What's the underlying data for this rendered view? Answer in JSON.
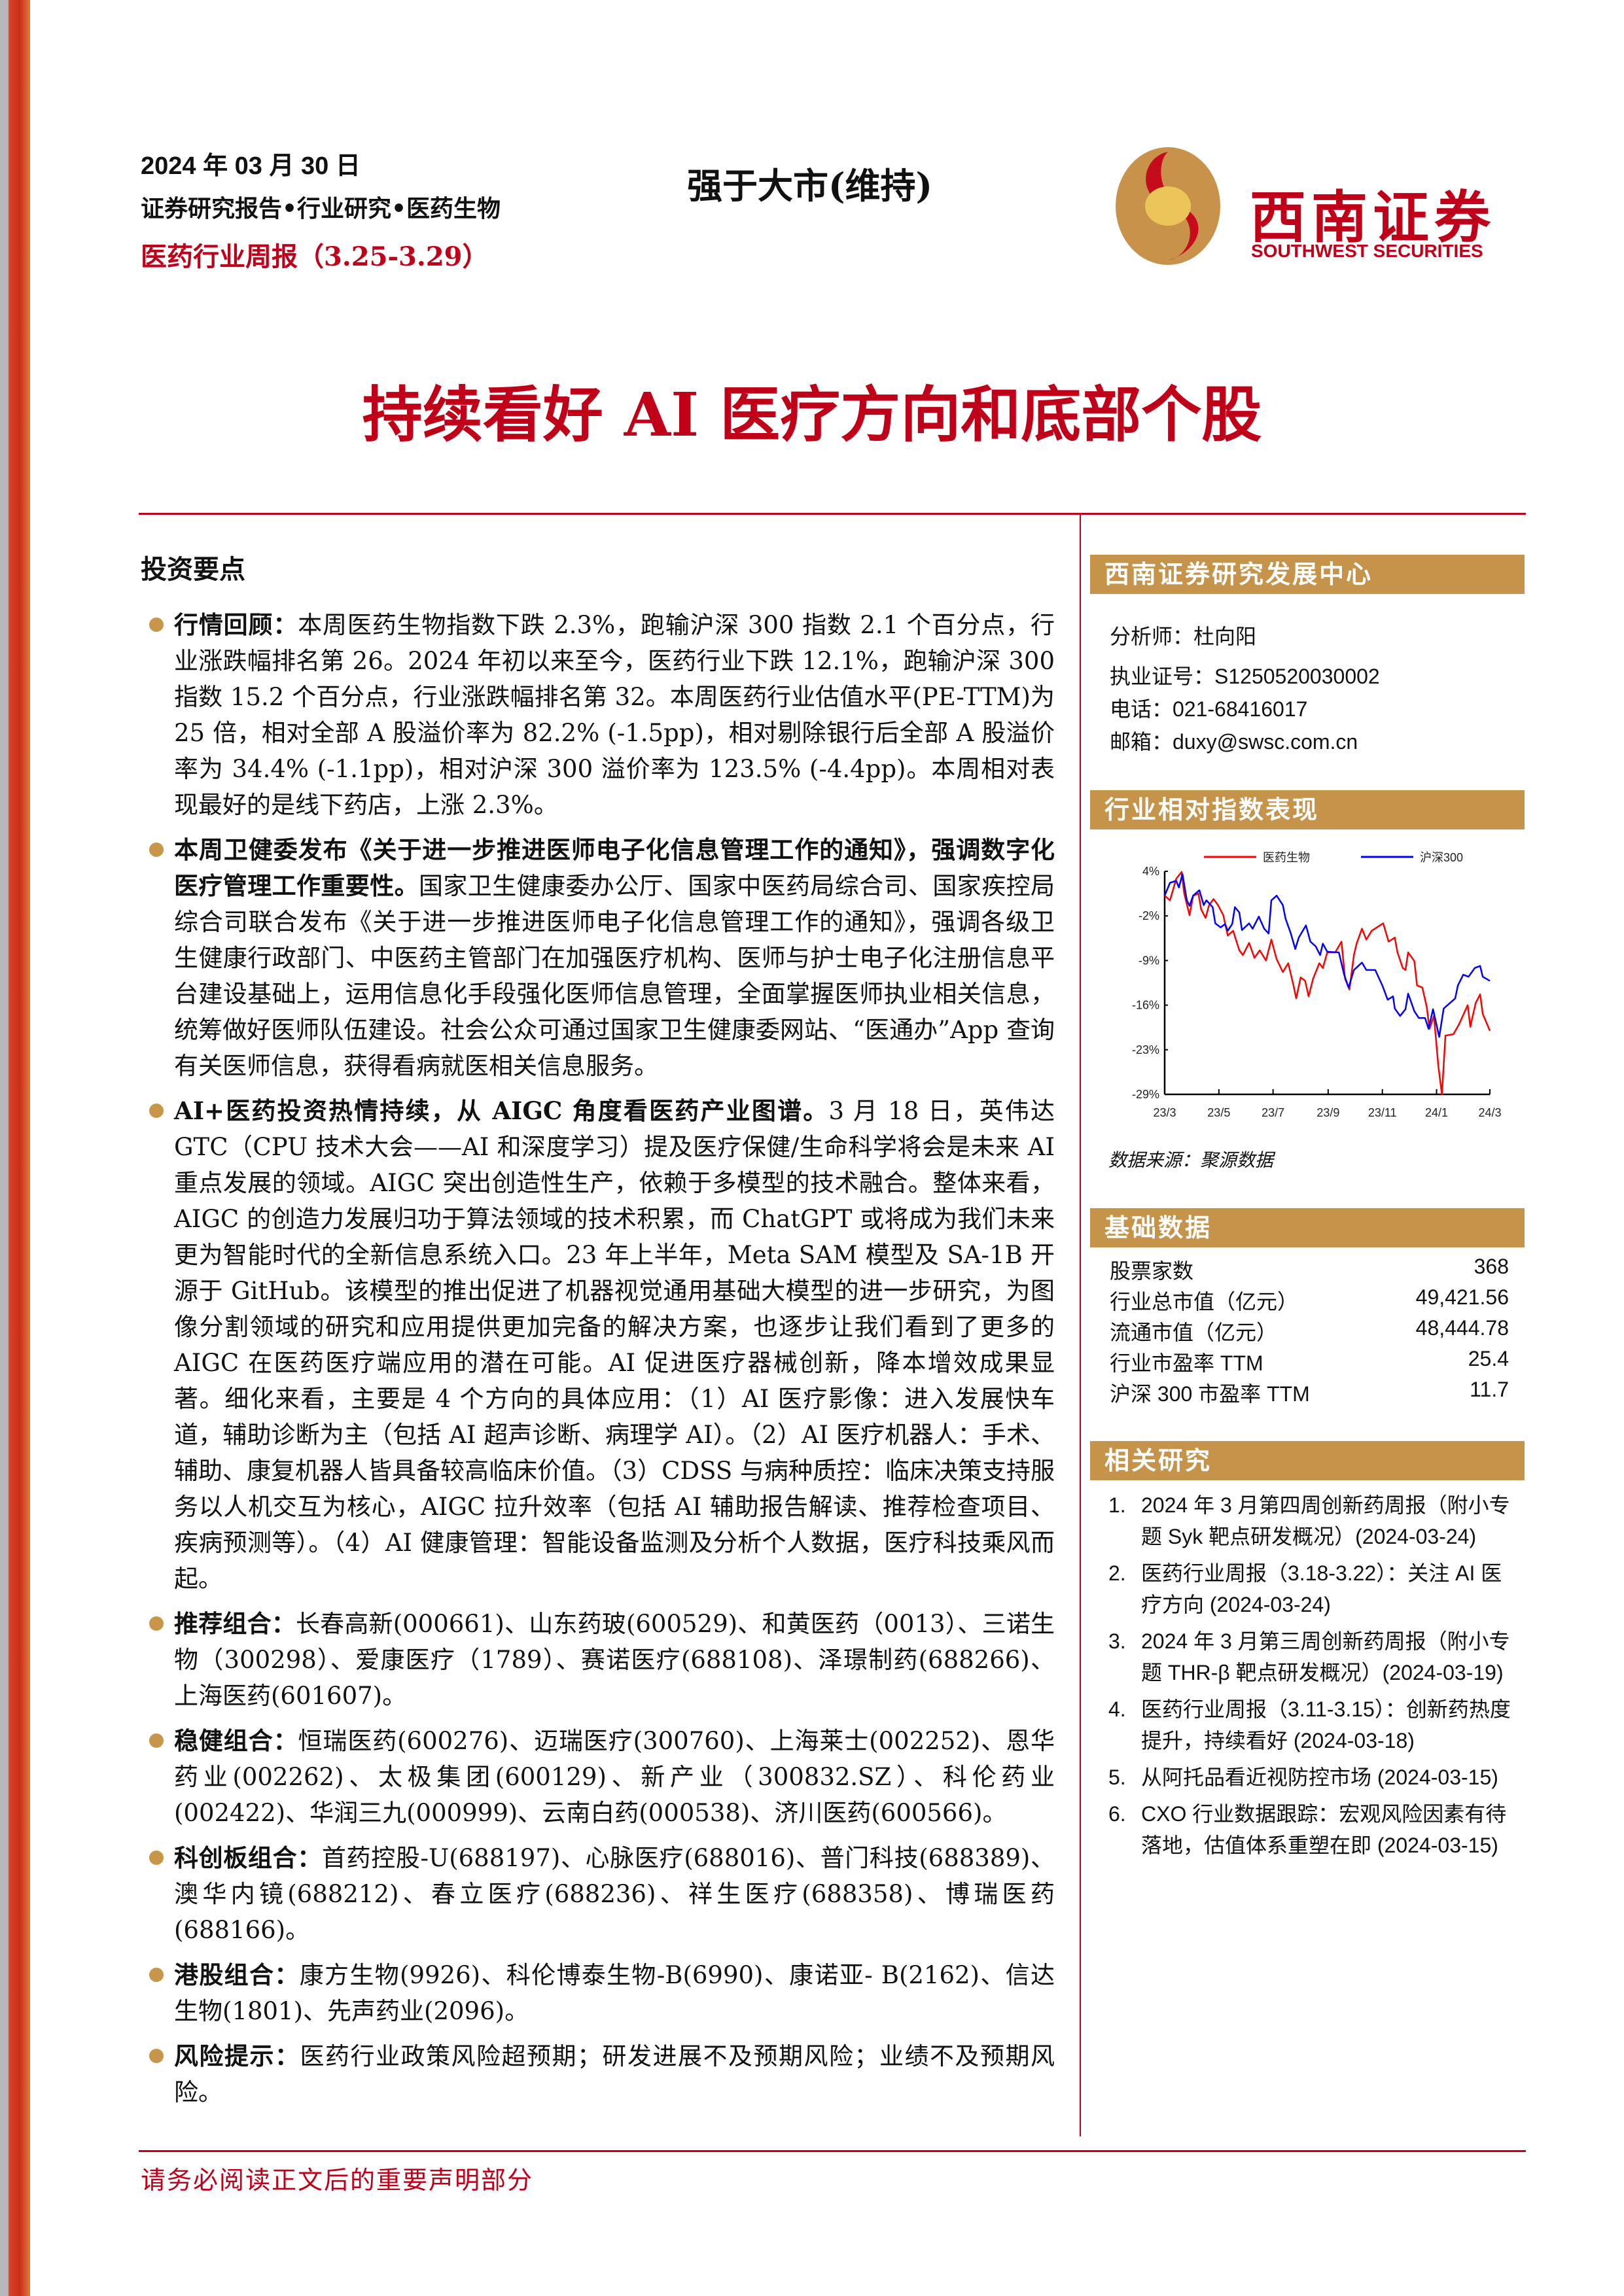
{
  "header": {
    "date": "2024 年 03 月 30 日",
    "report_type": "证券研究报告•行业研究•医药生物",
    "weekly": "医药行业周报（3.25-3.29）",
    "rating": "强于大市(维持)"
  },
  "logo": {
    "cn": "西南证券",
    "en": "SOUTHWEST SECURITIES"
  },
  "title": "持续看好 AI 医疗方向和底部个股",
  "main": {
    "heading": "投资要点",
    "points": [
      {
        "lead": "行情回顾：",
        "body": "本周医药生物指数下跌 2.3%，跑输沪深 300 指数 2.1 个百分点，行业涨跌幅排名第 26。2024 年初以来至今，医药行业下跌 12.1%，跑输沪深 300 指数 15.2 个百分点，行业涨跌幅排名第 32。本周医药行业估值水平(PE-TTM)为 25 倍，相对全部 A 股溢价率为 82.2% (-1.5pp)，相对剔除银行后全部 A 股溢价率为 34.4% (-1.1pp)，相对沪深 300 溢价率为 123.5% (-4.4pp)。本周相对表现最好的是线下药店，上涨 2.3%。"
      },
      {
        "lead": "本周卫健委发布《关于进一步推进医师电子化信息管理工作的通知》，强调数字化医疗管理工作重要性。",
        "body": "国家卫生健康委办公厅、国家中医药局综合司、国家疾控局综合司联合发布《关于进一步推进医师电子化信息管理工作的通知》，强调各级卫生健康行政部门、中医药主管部门在加强医疗机构、医师与护士电子化注册信息平台建设基础上，运用信息化手段强化医师信息管理，全面掌握医师执业相关信息，统筹做好医师队伍建设。社会公众可通过国家卫生健康委网站、“医通办”App 查询有关医师信息，获得看病就医相关信息服务。"
      },
      {
        "lead": "AI+医药投资热情持续，从 AIGC 角度看医药产业图谱。",
        "body": "3 月 18 日，英伟达 GTC（CPU 技术大会——AI 和深度学习）提及医疗保健/生命科学将会是未来 AI 重点发展的领域。AIGC 突出创造性生产，依赖于多模型的技术融合。整体来看，AIGC 的创造力发展归功于算法领域的技术积累，而 ChatGPT 或将成为我们未来更为智能时代的全新信息系统入口。23 年上半年，Meta SAM 模型及 SA-1B 开源于 GitHub。该模型的推出促进了机器视觉通用基础大模型的进一步研究，为图像分割领域的研究和应用提供更加完备的解决方案，也逐步让我们看到了更多的 AIGC 在医药医疗端应用的潜在可能。AI 促进医疗器械创新，降本增效成果显著。细化来看，主要是 4 个方向的具体应用：（1）AI 医疗影像：进入发展快车道，辅助诊断为主（包括 AI 超声诊断、病理学 AI）。（2）AI 医疗机器人：手术、辅助、康复机器人皆具备较高临床价值。（3）CDSS 与病种质控：临床决策支持服务以人机交互为核心，AIGC 拉升效率（包括 AI 辅助报告解读、推荐检查项目、疾病预测等）。（4）AI 健康管理：智能设备监测及分析个人数据，医疗科技乘风而起。"
      },
      {
        "lead": "推荐组合：",
        "body": "长春高新(000661)、山东药玻(600529)、和黄医药（0013）、三诺生物（300298）、爱康医疗（1789）、赛诺医疗(688108)、泽璟制药(688266)、上海医药(601607)。"
      },
      {
        "lead": "稳健组合：",
        "body": "恒瑞医药(600276)、迈瑞医疗(300760)、上海莱士(002252)、恩华药业(002262)、太极集团(600129)、新产业（300832.SZ）、科伦药业(002422)、华润三九(000999)、云南白药(000538)、济川医药(600566)。"
      },
      {
        "lead": "科创板组合：",
        "body": "首药控股-U(688197)、心脉医疗(688016)、普门科技(688389)、澳华内镜(688212)、春立医疗(688236)、祥生医疗(688358)、博瑞医药(688166)。"
      },
      {
        "lead": "港股组合：",
        "body": "康方生物(9926)、科伦博泰生物-B(6990)、康诺亚- B(2162)、信达生物(1801)、先声药业(2096)。"
      },
      {
        "lead": "风险提示：",
        "body": "医药行业政策风险超预期；研发进展不及预期风险；业绩不及预期风险。"
      }
    ]
  },
  "sidebar": {
    "center_title": "西南证券研究发展中心",
    "analyst": "分析师：杜向阳",
    "license": "执业证号：S1250520030002",
    "phone": "电话：021-68416017",
    "email": "邮箱：duxy@swsc.com.cn",
    "chart_title": "行业相对指数表现",
    "chart_source": "数据来源：聚源数据",
    "basic_title": "基础数据",
    "basic_rows": [
      {
        "label": "股票家数",
        "value": "368"
      },
      {
        "label": "行业总市值（亿元）",
        "value": "49,421.56"
      },
      {
        "label": "流通市值（亿元）",
        "value": "48,444.78"
      },
      {
        "label": "行业市盈率 TTM",
        "value": "25.4"
      },
      {
        "label": "沪深 300 市盈率 TTM",
        "value": "11.7"
      }
    ],
    "related_title": "相关研究",
    "related": [
      {
        "num": "1.",
        "text": "2024 年 3 月第四周创新药周报（附小专题 Syk 靶点研发概况）(2024-03-24)"
      },
      {
        "num": "2.",
        "text": "医药行业周报（3.18-3.22）：关注 AI 医疗方向 (2024-03-24)"
      },
      {
        "num": "3.",
        "text": "2024 年 3 月第三周创新药周报（附小专题 THR-β 靶点研发概况）(2024-03-19)"
      },
      {
        "num": "4.",
        "text": "医药行业周报（3.11-3.15）：创新药热度提升，持续看好 (2024-03-18)"
      },
      {
        "num": "5.",
        "text": "从阿托品看近视防控市场 (2024-03-15)"
      },
      {
        "num": "6.",
        "text": "CXO 行业数据跟踪：宏观风险因素有待落地，估值体系重塑在即 (2024-03-15)"
      }
    ]
  },
  "footer": "请务必阅读正文后的重要声明部分",
  "colors": {
    "brand_red": "#c00018",
    "section_gold": "#c6934a",
    "series_pharma": "#ff0000",
    "series_hs300": "#0000ff"
  },
  "chart_data": {
    "type": "line",
    "ylim": [
      -29,
      4
    ],
    "y_tick_labels": [
      "4%",
      "-2%",
      "-9%",
      "-16%",
      "-23%",
      "-29%"
    ],
    "x_tick_labels": [
      "23/3",
      "23/5",
      "23/7",
      "23/9",
      "23/11",
      "24/1",
      "24/3"
    ],
    "x_tick_dates": [
      "2023-03-01",
      "2023-05-01",
      "2023-07-01",
      "2023-09-01",
      "2023-11-01",
      "2024-01-01",
      "2024-03-01"
    ],
    "legend": "top",
    "series": [
      {
        "name": "医药生物",
        "color": "#ff0000",
        "points": [
          [
            "2023-03-01",
            0.4
          ],
          [
            "2023-03-07",
            -0.3
          ],
          [
            "2023-03-14",
            2.9
          ],
          [
            "2023-03-20",
            3.9
          ],
          [
            "2023-03-23",
            0.7
          ],
          [
            "2023-03-29",
            -2.5
          ],
          [
            "2023-04-02",
            0.4
          ],
          [
            "2023-04-08",
            0.7
          ],
          [
            "2023-04-11",
            -1.6
          ],
          [
            "2023-04-16",
            -2.9
          ],
          [
            "2023-04-20",
            -1.0
          ],
          [
            "2023-04-25",
            -0.1
          ],
          [
            "2023-04-30",
            -1.0
          ],
          [
            "2023-05-06",
            -2.5
          ],
          [
            "2023-05-11",
            -5.5
          ],
          [
            "2023-05-17",
            -4.8
          ],
          [
            "2023-05-24",
            -7.7
          ],
          [
            "2023-05-28",
            -8.4
          ],
          [
            "2023-06-04",
            -6.6
          ],
          [
            "2023-06-10",
            -8.8
          ],
          [
            "2023-06-16",
            -7.7
          ],
          [
            "2023-06-23",
            -9.2
          ],
          [
            "2023-06-29",
            -6.1
          ],
          [
            "2023-07-05",
            -9.0
          ],
          [
            "2023-07-12",
            -10.9
          ],
          [
            "2023-07-18",
            -9.6
          ],
          [
            "2023-07-24",
            -12.9
          ],
          [
            "2023-07-27",
            -14.8
          ],
          [
            "2023-08-01",
            -11.7
          ],
          [
            "2023-08-06",
            -12.2
          ],
          [
            "2023-08-10",
            -14.5
          ],
          [
            "2023-08-15",
            -11.9
          ],
          [
            "2023-08-22",
            -9.6
          ],
          [
            "2023-08-26",
            -10.3
          ],
          [
            "2023-08-31",
            -8.0
          ],
          [
            "2023-09-09",
            -8.0
          ],
          [
            "2023-09-16",
            -6.4
          ],
          [
            "2023-09-20",
            -11.9
          ],
          [
            "2023-09-25",
            -13.5
          ],
          [
            "2023-09-30",
            -8.4
          ],
          [
            "2023-10-03",
            -6.7
          ],
          [
            "2023-10-09",
            -4.5
          ],
          [
            "2023-10-14",
            -6.1
          ],
          [
            "2023-10-20",
            -4.8
          ],
          [
            "2023-10-27",
            -4.2
          ],
          [
            "2023-11-02",
            -3.7
          ],
          [
            "2023-11-08",
            -6.4
          ],
          [
            "2023-11-15",
            -5.8
          ],
          [
            "2023-11-18",
            -8.0
          ],
          [
            "2023-11-24",
            -10.3
          ],
          [
            "2023-11-27",
            -10.6
          ],
          [
            "2023-11-30",
            -8.0
          ],
          [
            "2023-12-07",
            -9.3
          ],
          [
            "2023-12-10",
            -12.9
          ],
          [
            "2023-12-16",
            -13.2
          ],
          [
            "2023-12-21",
            -16.1
          ],
          [
            "2023-12-24",
            -19.3
          ],
          [
            "2023-12-29",
            -17.4
          ],
          [
            "2024-01-03",
            -24.8
          ],
          [
            "2024-01-07",
            -29.0
          ],
          [
            "2024-01-11",
            -20.3
          ],
          [
            "2024-01-20",
            -20.1
          ],
          [
            "2024-01-26",
            -18.7
          ],
          [
            "2024-02-05",
            -15.8
          ],
          [
            "2024-02-08",
            -19.0
          ],
          [
            "2024-02-14",
            -15.5
          ],
          [
            "2024-02-19",
            -14.2
          ],
          [
            "2024-02-22",
            -17.1
          ],
          [
            "2024-03-01",
            -19.6
          ]
        ]
      },
      {
        "name": "沪深300",
        "color": "#0000ff",
        "points": [
          [
            "2023-03-01",
            0.4
          ],
          [
            "2023-03-07",
            2.3
          ],
          [
            "2023-03-14",
            2.6
          ],
          [
            "2023-03-17",
            1.6
          ],
          [
            "2023-03-21",
            3.6
          ],
          [
            "2023-03-26",
            -0.3
          ],
          [
            "2023-03-29",
            -1.1
          ],
          [
            "2023-04-02",
            0.4
          ],
          [
            "2023-04-09",
            1.2
          ],
          [
            "2023-04-14",
            -1.0
          ],
          [
            "2023-04-17",
            -0.3
          ],
          [
            "2023-04-24",
            -1.3
          ],
          [
            "2023-04-27",
            -3.7
          ],
          [
            "2023-05-03",
            -4.3
          ],
          [
            "2023-05-08",
            -3.8
          ],
          [
            "2023-05-11",
            -4.8
          ],
          [
            "2023-05-16",
            -3.8
          ],
          [
            "2023-05-19",
            -1.3
          ],
          [
            "2023-05-24",
            -2.1
          ],
          [
            "2023-05-27",
            -4.7
          ],
          [
            "2023-06-04",
            -3.7
          ],
          [
            "2023-06-08",
            -4.5
          ],
          [
            "2023-06-15",
            -2.7
          ],
          [
            "2023-06-21",
            -4.5
          ],
          [
            "2023-06-26",
            -5.2
          ],
          [
            "2023-06-29",
            -0.3
          ],
          [
            "2023-07-05",
            0.4
          ],
          [
            "2023-07-12",
            -1.0
          ],
          [
            "2023-07-15",
            -3.0
          ],
          [
            "2023-07-21",
            -5.2
          ],
          [
            "2023-07-26",
            -7.5
          ],
          [
            "2023-07-30",
            -5.8
          ],
          [
            "2023-08-07",
            -4.0
          ],
          [
            "2023-08-12",
            -6.4
          ],
          [
            "2023-08-18",
            -7.1
          ],
          [
            "2023-08-23",
            -8.4
          ],
          [
            "2023-08-26",
            -6.7
          ],
          [
            "2023-08-31",
            -7.9
          ],
          [
            "2023-09-13",
            -8.0
          ],
          [
            "2023-09-19",
            -11.3
          ],
          [
            "2023-09-24",
            -13.2
          ],
          [
            "2023-09-30",
            -10.6
          ],
          [
            "2023-10-09",
            -9.5
          ],
          [
            "2023-10-14",
            -10.6
          ],
          [
            "2023-10-24",
            -10.6
          ],
          [
            "2023-11-01",
            -12.9
          ],
          [
            "2023-11-07",
            -15.0
          ],
          [
            "2023-11-13",
            -14.5
          ],
          [
            "2023-11-15",
            -16.3
          ],
          [
            "2023-11-21",
            -17.4
          ],
          [
            "2023-11-27",
            -16.4
          ],
          [
            "2023-11-30",
            -14.1
          ],
          [
            "2023-12-07",
            -16.7
          ],
          [
            "2023-12-12",
            -17.7
          ],
          [
            "2023-12-19",
            -17.7
          ],
          [
            "2023-12-23",
            -19.3
          ],
          [
            "2023-12-28",
            -16.4
          ],
          [
            "2024-01-04",
            -20.5
          ],
          [
            "2024-01-09",
            -16.3
          ],
          [
            "2024-01-22",
            -14.8
          ],
          [
            "2024-01-25",
            -12.9
          ],
          [
            "2024-01-31",
            -11.3
          ],
          [
            "2024-02-06",
            -11.6
          ],
          [
            "2024-02-13",
            -10.3
          ],
          [
            "2024-02-19",
            -10.0
          ],
          [
            "2024-02-22",
            -11.6
          ],
          [
            "2024-03-01",
            -12.2
          ]
        ]
      }
    ]
  }
}
